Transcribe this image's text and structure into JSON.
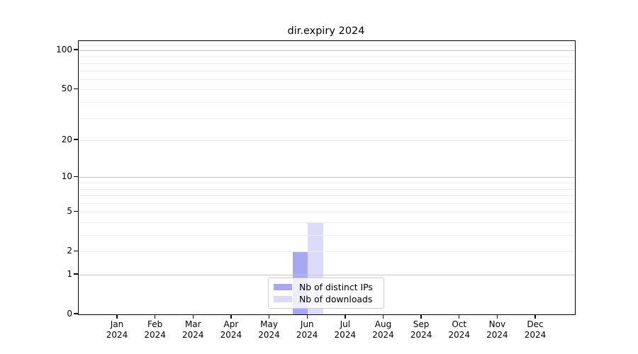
{
  "title": "dir.expiry 2024",
  "chart_data": {
    "type": "bar",
    "title": "dir.expiry 2024",
    "categories": [
      "Jan 2024",
      "Feb 2024",
      "Mar 2024",
      "Apr 2024",
      "May 2024",
      "Jun 2024",
      "Jul 2024",
      "Aug 2024",
      "Sep 2024",
      "Oct 2024",
      "Nov 2024",
      "Dec 2024"
    ],
    "series": [
      {
        "name": "Nb of distinct IPs",
        "color": "#a7a7f4",
        "values": [
          0,
          0,
          0,
          0,
          0,
          2,
          0,
          0,
          0,
          0,
          0,
          0
        ]
      },
      {
        "name": "Nb of downloads",
        "color": "#dcdcfa",
        "values": [
          0,
          0,
          0,
          0,
          0,
          4,
          0,
          0,
          0,
          0,
          0,
          0
        ]
      }
    ],
    "xlabel": "",
    "ylabel": "",
    "yscale": "log1p",
    "ylim": [
      0,
      117
    ],
    "y_ticks": [
      0,
      1,
      2,
      5,
      10,
      20,
      50,
      100
    ],
    "y_major_gridlines": [
      1,
      10,
      100
    ],
    "y_minor_gridlines": [
      2,
      3,
      4,
      5,
      6,
      7,
      8,
      9,
      20,
      30,
      40,
      50,
      60,
      70,
      80,
      90,
      110
    ],
    "grid": "horizontal",
    "legend_position": "lower center"
  },
  "colors": {
    "major_grid": "#c6c6c6",
    "minor_grid": "#eeeeee",
    "axis": "#000000",
    "legend_border": "#cccccc"
  }
}
